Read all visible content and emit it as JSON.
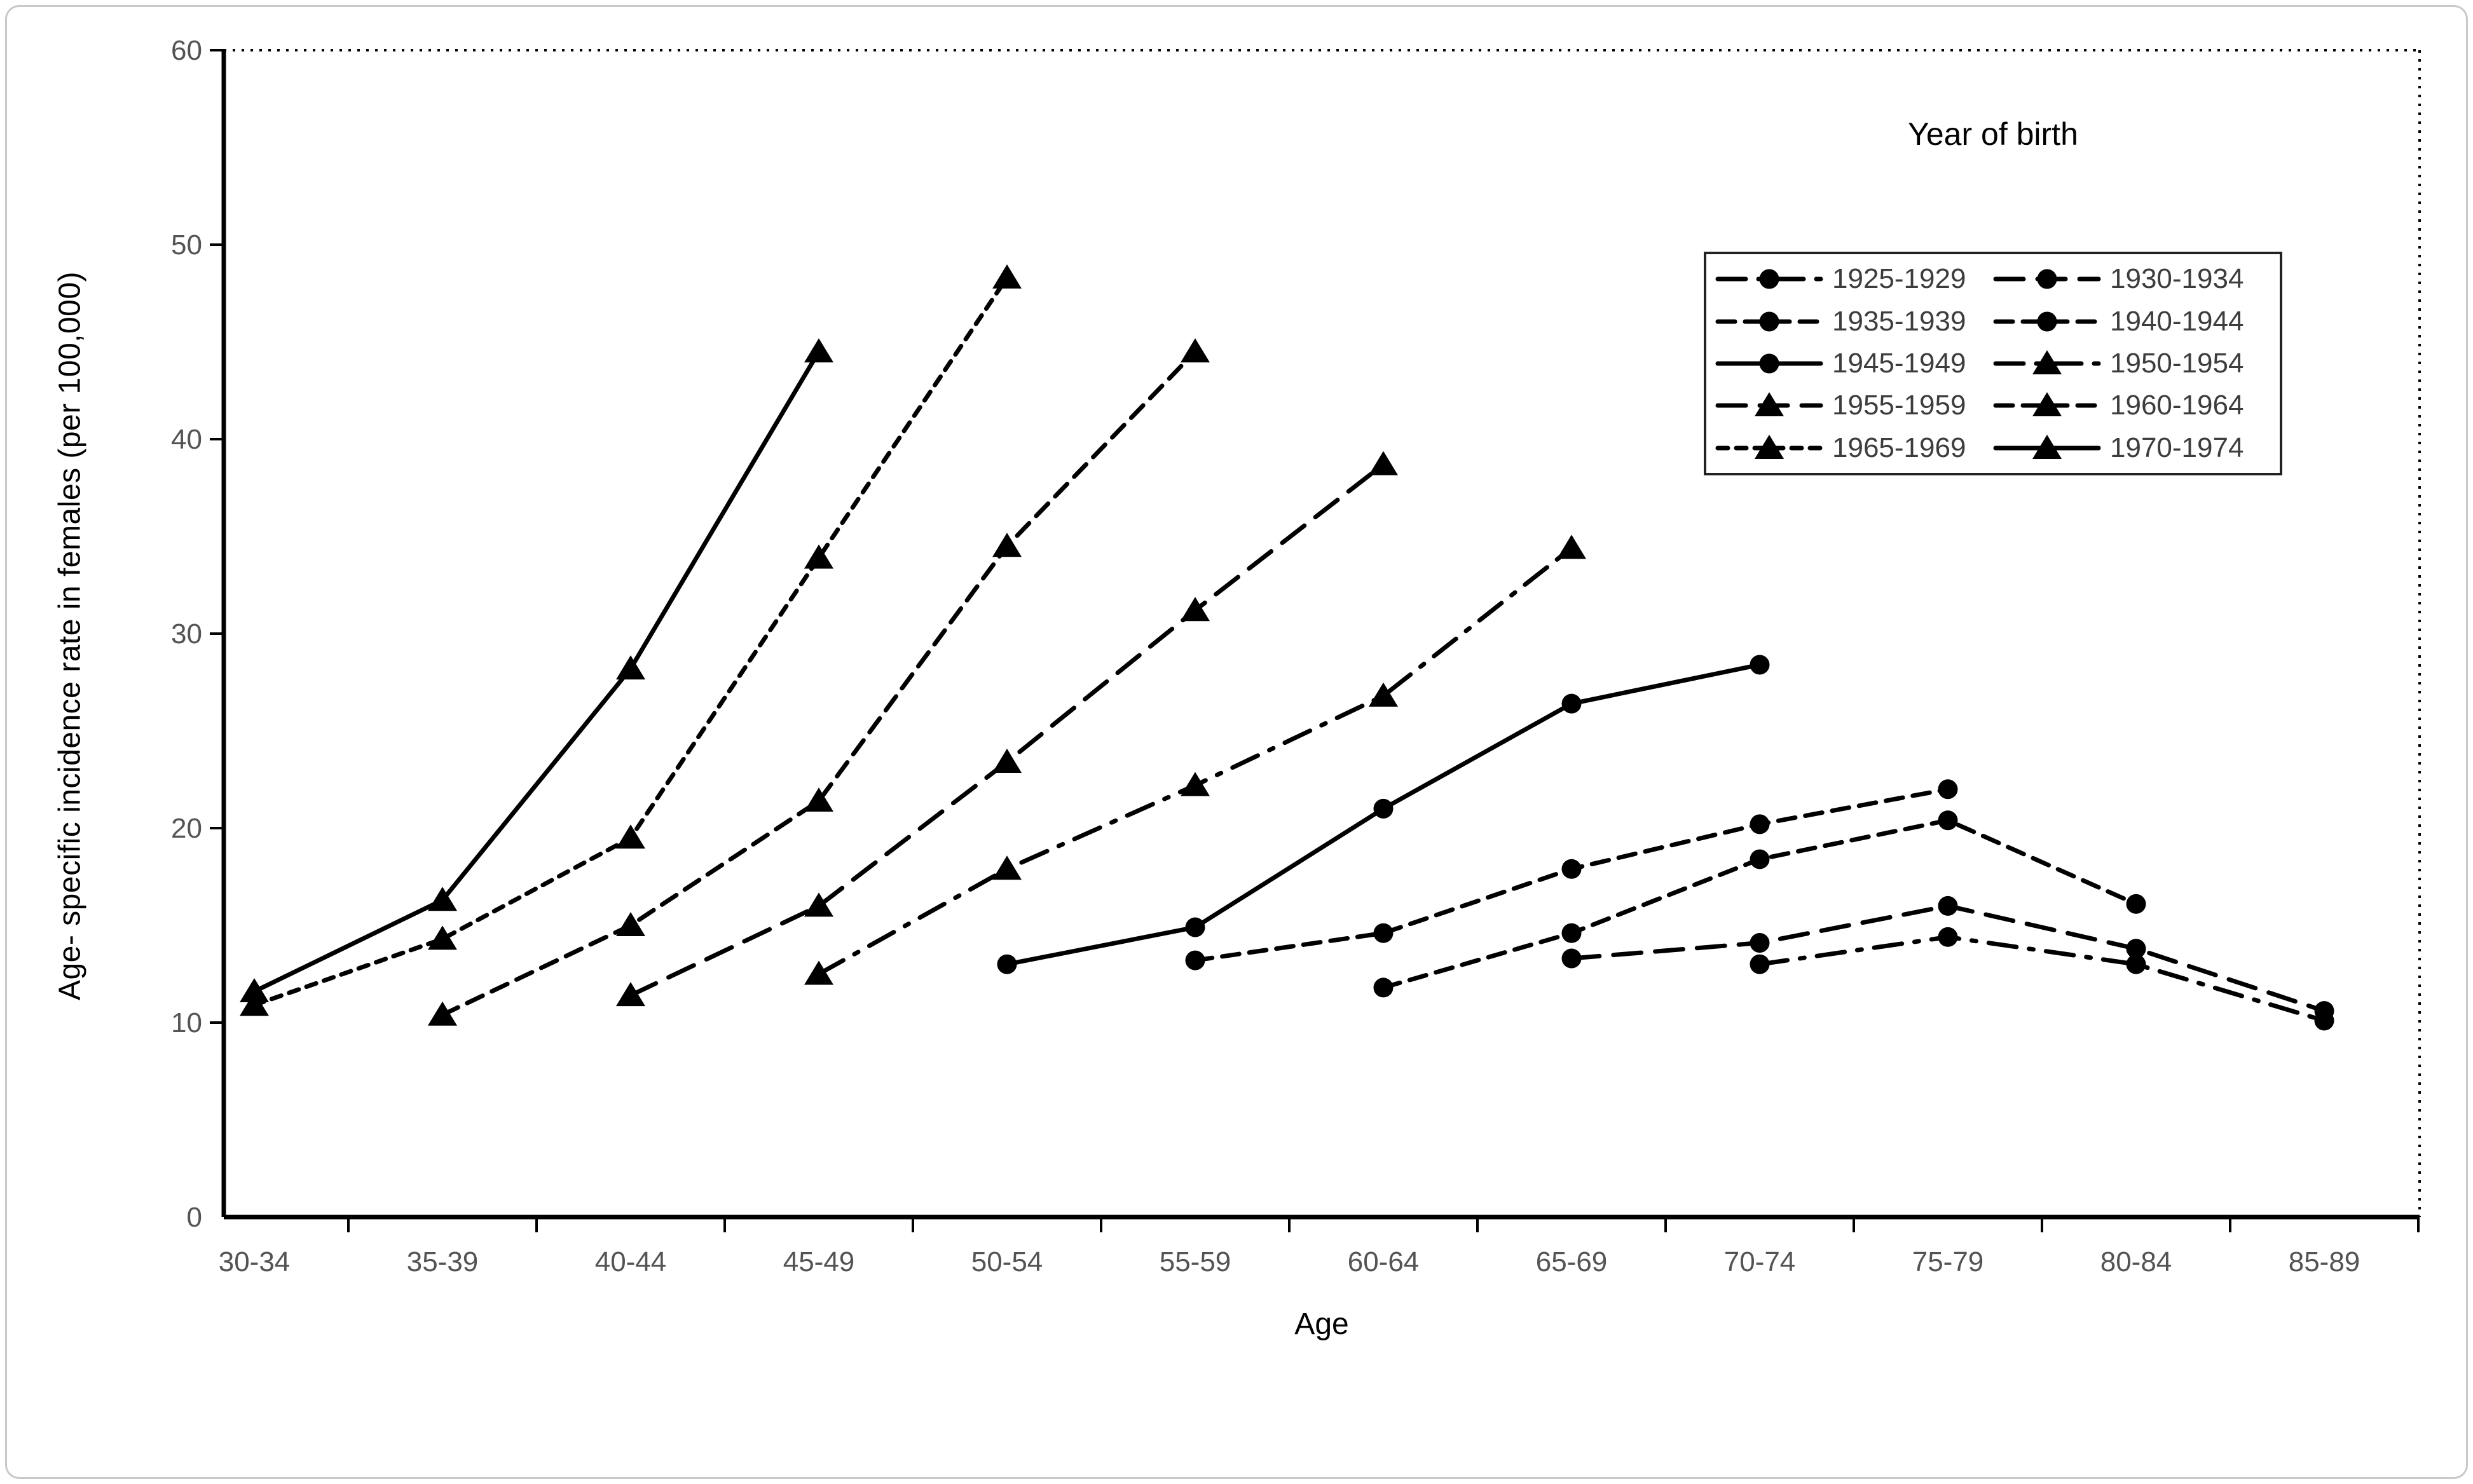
{
  "figure": {
    "background": "#ffffff",
    "outer_border_color": "#c9c9c9"
  },
  "chart_data": {
    "type": "line",
    "title": "",
    "legend_title": "Year of birth",
    "legend_position": "top-right",
    "legend_columns": 2,
    "xlabel": "Age",
    "ylabel": "Age- specific incidence rate in females (per 100,000)",
    "categories": [
      "30-34",
      "35-39",
      "40-44",
      "45-49",
      "50-54",
      "55-59",
      "60-64",
      "65-69",
      "70-74",
      "75-79",
      "80-84",
      "85-89"
    ],
    "yticks": [
      0,
      10,
      20,
      30,
      40,
      50,
      60
    ],
    "ylim": [
      0,
      60
    ],
    "grid": false,
    "frame": {
      "left": "solid",
      "bottom": "solid",
      "top": "dotted",
      "right": "dotted"
    },
    "line_color": "#000000",
    "tick_label_color": "#545454",
    "series": [
      {
        "name": "1925-1929",
        "marker": "circle",
        "line_style": "long-dash-dot",
        "start_category_index": 8,
        "values": [
          13.0,
          14.4,
          13.0,
          10.1
        ]
      },
      {
        "name": "1930-1934",
        "marker": "circle",
        "line_style": "long-dash",
        "start_category_index": 7,
        "values": [
          13.3,
          14.1,
          16.0,
          13.8,
          10.6
        ]
      },
      {
        "name": "1935-1939",
        "marker": "circle",
        "line_style": "dash",
        "start_category_index": 6,
        "values": [
          11.8,
          14.6,
          18.4,
          20.4,
          16.1
        ]
      },
      {
        "name": "1940-1944",
        "marker": "circle",
        "line_style": "dash",
        "start_category_index": 5,
        "values": [
          13.2,
          14.6,
          17.9,
          20.2,
          22.0
        ]
      },
      {
        "name": "1945-1949",
        "marker": "circle",
        "line_style": "solid",
        "start_category_index": 4,
        "values": [
          13.0,
          14.9,
          21.0,
          26.4,
          28.4
        ]
      },
      {
        "name": "1950-1954",
        "marker": "triangle",
        "line_style": "long-dash-dot",
        "start_category_index": 3,
        "values": [
          12.5,
          17.9,
          22.2,
          26.8,
          34.4
        ]
      },
      {
        "name": "1955-1959",
        "marker": "triangle",
        "line_style": "long-dash",
        "start_category_index": 2,
        "values": [
          11.4,
          16.0,
          23.4,
          31.2,
          38.7
        ]
      },
      {
        "name": "1960-1964",
        "marker": "triangle",
        "line_style": "dash",
        "start_category_index": 1,
        "values": [
          10.4,
          15.0,
          21.4,
          34.5,
          44.5
        ]
      },
      {
        "name": "1965-1969",
        "marker": "triangle",
        "line_style": "short-dash",
        "start_category_index": 0,
        "values": [
          10.9,
          14.3,
          19.5,
          33.9,
          48.3
        ]
      },
      {
        "name": "1970-1974",
        "marker": "triangle",
        "line_style": "solid",
        "start_category_index": 0,
        "values": [
          11.6,
          16.3,
          28.2,
          44.5
        ]
      }
    ]
  }
}
